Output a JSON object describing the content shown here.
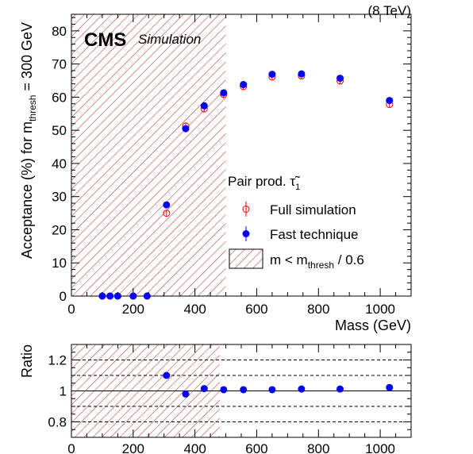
{
  "energy_label": "(8 TeV)",
  "cms_label": "CMS",
  "cms_sublabel": "Simulation",
  "chart_data": [
    {
      "type": "scatter",
      "xlabel": "Mass (GeV)",
      "ylabel_parts": {
        "main": "Acceptance (%) for m",
        "sub": "thresh",
        "tail": " = 300 GeV"
      },
      "xlim": [
        0,
        1100
      ],
      "ylim": [
        0,
        85
      ],
      "x_ticks": [
        0,
        200,
        400,
        600,
        800,
        1000
      ],
      "y_ticks": [
        0,
        10,
        20,
        30,
        40,
        50,
        60,
        70,
        80
      ],
      "excluded_region": {
        "x_max": 500
      },
      "legend": {
        "title_main": "Pair prod. τ̃",
        "title_sub": "1",
        "position": "right",
        "entries": {
          "full": "Full simulation",
          "fast": "Fast technique",
          "band_main": "m < m",
          "band_sub": "thresh",
          "band_tail": " / 0.6"
        }
      },
      "series": [
        {
          "key": "full",
          "color": "#ff0000",
          "marker": "open-circle",
          "x": [
            100,
            125,
            150,
            200,
            245,
            308,
            370,
            430,
            493,
            557,
            650,
            745,
            870,
            1030
          ],
          "y": [
            0,
            0,
            0,
            0,
            0,
            25,
            51.3,
            56.5,
            60.8,
            63.2,
            66.1,
            66.4,
            64.9,
            57.8
          ]
        },
        {
          "key": "fast",
          "color": "#0000ff",
          "marker": "filled-circle",
          "x": [
            100,
            125,
            150,
            200,
            245,
            308,
            370,
            430,
            493,
            557,
            650,
            745,
            870,
            1030
          ],
          "y": [
            0,
            0,
            0,
            0,
            0,
            27.5,
            50.5,
            57.4,
            61.3,
            63.8,
            66.9,
            67.0,
            65.7,
            59.0
          ]
        }
      ]
    },
    {
      "type": "scatter",
      "ylabel": "Ratio",
      "xlim": [
        0,
        1100
      ],
      "ylim": [
        0.7,
        1.3
      ],
      "x_ticks": [
        0,
        200,
        400,
        600,
        800,
        1000
      ],
      "y_ticks": [
        0.8,
        1,
        1.2
      ],
      "y_tick_labels": [
        "0.8",
        "1",
        "1.2"
      ],
      "dashed_lines": [
        0.8,
        0.9,
        1.1,
        1.2
      ],
      "solid_line": 1.0,
      "excluded_region": {
        "x_max": 480
      },
      "series": [
        {
          "key": "ratio",
          "color": "#0000ff",
          "marker": "filled-circle",
          "x": [
            308,
            370,
            430,
            493,
            557,
            650,
            745,
            870,
            1030
          ],
          "y": [
            1.1,
            0.98,
            1.015,
            1.008,
            1.008,
            1.008,
            1.012,
            1.012,
            1.022
          ]
        }
      ]
    }
  ]
}
